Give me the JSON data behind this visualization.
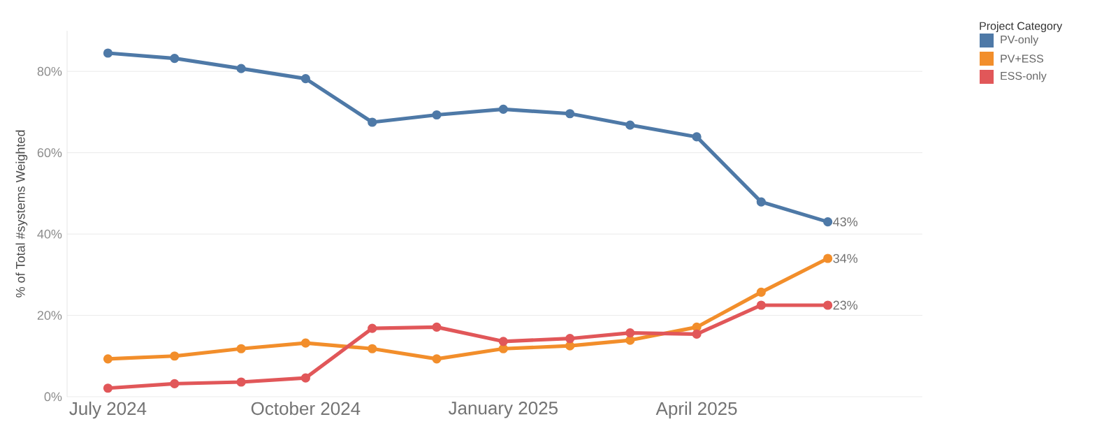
{
  "chart_data": {
    "type": "line",
    "ylabel": "% of Total #systems Weighted",
    "legend_title": "Project Category",
    "legend": "top right",
    "grid": "y",
    "marker": "circle",
    "line_style": "solid",
    "x": [
      "2024-07",
      "2024-08",
      "2024-09",
      "2024-10",
      "2024-11",
      "2024-12",
      "2025-01",
      "2025-02",
      "2025-03",
      "2025-04",
      "2025-05",
      "2025-06"
    ],
    "xlim": [
      "2024-06-12",
      "2025-07-15"
    ],
    "xticks": [
      {
        "value": "2024-07",
        "label": "July 2024"
      },
      {
        "value": "2024-10",
        "label": "October 2024"
      },
      {
        "value": "2025-01",
        "label": "January 2025"
      },
      {
        "value": "2025-04",
        "label": "April 2025"
      }
    ],
    "ylim": [
      0,
      90
    ],
    "yticks": [
      {
        "value": 0,
        "label": "0%"
      },
      {
        "value": 20,
        "label": "20%"
      },
      {
        "value": 40,
        "label": "40%"
      },
      {
        "value": 60,
        "label": "60%"
      },
      {
        "value": 80,
        "label": "80%"
      }
    ],
    "series": [
      {
        "name": "PV-only",
        "color": "#4e79a7",
        "values": [
          84.5,
          83.2,
          80.7,
          78.2,
          67.5,
          69.3,
          70.7,
          69.6,
          66.8,
          63.9,
          47.9,
          43
        ],
        "value_labels": [
          null,
          null,
          null,
          null,
          null,
          null,
          null,
          null,
          null,
          null,
          null,
          "43%"
        ]
      },
      {
        "name": "PV+ESS",
        "color": "#f28e2b",
        "values": [
          9.3,
          10,
          11.8,
          13.2,
          11.8,
          9.3,
          11.8,
          12.5,
          13.9,
          17.1,
          25.7,
          34
        ],
        "value_labels": [
          null,
          null,
          null,
          null,
          null,
          null,
          null,
          null,
          null,
          null,
          null,
          "34%"
        ]
      },
      {
        "name": "ESS-only",
        "color": "#e15759",
        "values": [
          2.1,
          3.2,
          3.6,
          4.6,
          16.8,
          17.1,
          13.6,
          14.3,
          15.7,
          15.4,
          22.5,
          22.5
        ],
        "value_labels": [
          null,
          null,
          null,
          null,
          null,
          null,
          null,
          null,
          null,
          null,
          null,
          "23%"
        ]
      }
    ]
  }
}
